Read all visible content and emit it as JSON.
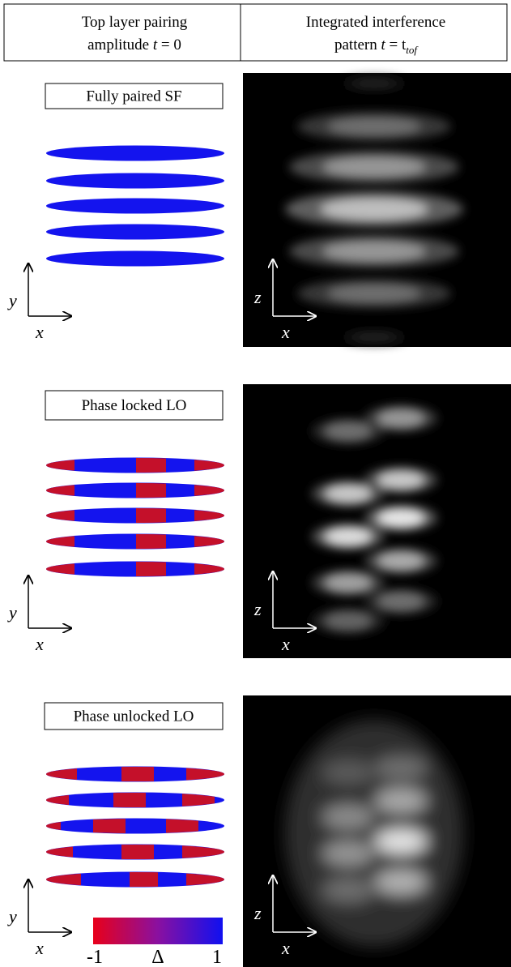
{
  "header": {
    "left": [
      "Top layer pairing",
      "amplitude",
      "t",
      "= 0"
    ],
    "right": [
      "Integrated interference",
      "pattern",
      "t",
      "= t",
      "tof"
    ]
  },
  "rows": [
    {
      "label": "Fully paired SF",
      "left_axes": [
        "y",
        "x"
      ],
      "right_axes": [
        "z",
        "x"
      ]
    },
    {
      "label": "Phase locked LO",
      "left_axes": [
        "y",
        "x"
      ],
      "right_axes": [
        "z",
        "x"
      ]
    },
    {
      "label": "Phase unlocked LO",
      "left_axes": [
        "y",
        "x"
      ],
      "right_axes": [
        "z",
        "x"
      ]
    }
  ],
  "colorbar": {
    "min": -1,
    "label": "Δ",
    "max": 1
  }
}
